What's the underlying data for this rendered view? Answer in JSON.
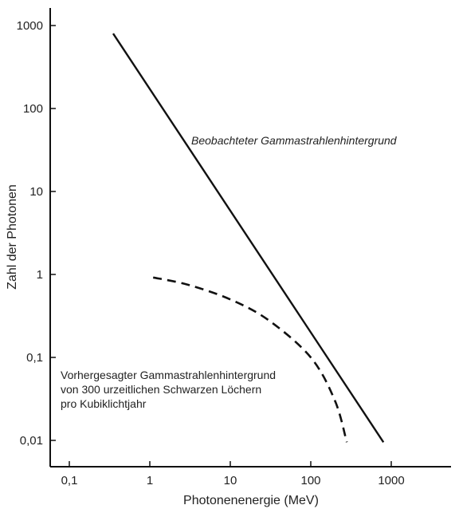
{
  "chart_data": {
    "type": "line",
    "xlabel": "Photonenenergie (MeV)",
    "ylabel": "Zahl der Photonen",
    "x_scale": "log",
    "y_scale": "log",
    "xlim": [
      0.05,
      5000
    ],
    "ylim": [
      0.006,
      1500
    ],
    "x_ticks": [
      {
        "value": 0.1,
        "label": "0,1"
      },
      {
        "value": 1,
        "label": "1"
      },
      {
        "value": 10,
        "label": "10"
      },
      {
        "value": 100,
        "label": "100"
      },
      {
        "value": 1000,
        "label": "1000"
      }
    ],
    "y_ticks": [
      {
        "value": 0.01,
        "label": "0,01"
      },
      {
        "value": 0.1,
        "label": "0,1"
      },
      {
        "value": 1,
        "label": "1"
      },
      {
        "value": 10,
        "label": "10"
      },
      {
        "value": 100,
        "label": "100"
      },
      {
        "value": 1000,
        "label": "1000"
      }
    ],
    "grid": false,
    "legend": "none",
    "series": [
      {
        "style": "solid",
        "x": [
          0.35,
          800
        ],
        "y": [
          800,
          0.0095
        ]
      },
      {
        "style": "dashed",
        "x": [
          1.1,
          3,
          10,
          30,
          100,
          200,
          280
        ],
        "y": [
          0.92,
          0.75,
          0.5,
          0.28,
          0.1,
          0.03,
          0.0095
        ]
      }
    ],
    "annotations": [
      {
        "lines": [
          "Beobachteter Gammastrahlenhintergrund"
        ],
        "italic": true
      },
      {
        "lines": [
          "Vorhergesagter Gammastrahlenhintergrund",
          "von 300 urzeitlichen Schwarzen Löchern",
          "pro Kubiklichtjahr"
        ],
        "italic": false
      }
    ]
  }
}
